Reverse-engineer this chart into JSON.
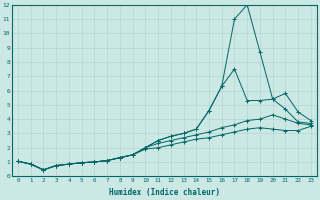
{
  "xlabel": "Humidex (Indice chaleur)",
  "xlim": [
    -0.5,
    23.5
  ],
  "ylim": [
    0,
    12
  ],
  "xticks": [
    0,
    1,
    2,
    3,
    4,
    5,
    6,
    7,
    8,
    9,
    10,
    11,
    12,
    13,
    14,
    15,
    16,
    17,
    18,
    19,
    20,
    21,
    22,
    23
  ],
  "yticks": [
    0,
    1,
    2,
    3,
    4,
    5,
    6,
    7,
    8,
    9,
    10,
    11,
    12
  ],
  "background_color": "#cce8e4",
  "grid_color": "#b8d4d0",
  "line_color": "#006666",
  "line1_x": [
    0,
    1,
    2,
    3,
    4,
    5,
    6,
    7,
    8,
    9,
    10,
    11,
    12,
    13,
    14,
    15,
    16,
    17,
    18,
    19,
    20,
    21,
    22,
    23
  ],
  "line1_y": [
    1.05,
    0.85,
    0.45,
    0.75,
    0.85,
    0.95,
    1.0,
    1.1,
    1.3,
    1.5,
    2.0,
    2.5,
    2.8,
    3.0,
    3.3,
    4.6,
    6.3,
    11.0,
    12.0,
    8.7,
    5.4,
    5.8,
    4.5,
    3.9
  ],
  "line2_x": [
    0,
    1,
    2,
    3,
    4,
    5,
    6,
    7,
    8,
    9,
    10,
    11,
    12,
    13,
    14,
    15,
    16,
    17,
    18,
    19,
    20,
    21,
    22,
    23
  ],
  "line2_y": [
    1.05,
    0.85,
    0.45,
    0.75,
    0.85,
    0.95,
    1.0,
    1.1,
    1.3,
    1.5,
    2.0,
    2.5,
    2.8,
    3.0,
    3.3,
    4.6,
    6.3,
    7.5,
    5.3,
    5.3,
    5.4,
    4.7,
    3.8,
    3.7
  ],
  "line3_x": [
    0,
    1,
    2,
    3,
    4,
    5,
    6,
    7,
    8,
    9,
    10,
    11,
    12,
    13,
    14,
    15,
    16,
    17,
    18,
    19,
    20,
    21,
    22,
    23
  ],
  "line3_y": [
    1.05,
    0.85,
    0.45,
    0.75,
    0.85,
    0.95,
    1.0,
    1.1,
    1.3,
    1.5,
    2.0,
    2.3,
    2.5,
    2.7,
    2.9,
    3.1,
    3.4,
    3.6,
    3.9,
    4.0,
    4.3,
    4.0,
    3.7,
    3.6
  ],
  "line4_x": [
    0,
    1,
    2,
    3,
    4,
    5,
    6,
    7,
    8,
    9,
    10,
    11,
    12,
    13,
    14,
    15,
    16,
    17,
    18,
    19,
    20,
    21,
    22,
    23
  ],
  "line4_y": [
    1.05,
    0.85,
    0.45,
    0.75,
    0.85,
    0.95,
    1.0,
    1.1,
    1.3,
    1.5,
    1.9,
    2.0,
    2.2,
    2.4,
    2.6,
    2.7,
    2.9,
    3.1,
    3.3,
    3.4,
    3.3,
    3.2,
    3.2,
    3.5
  ]
}
